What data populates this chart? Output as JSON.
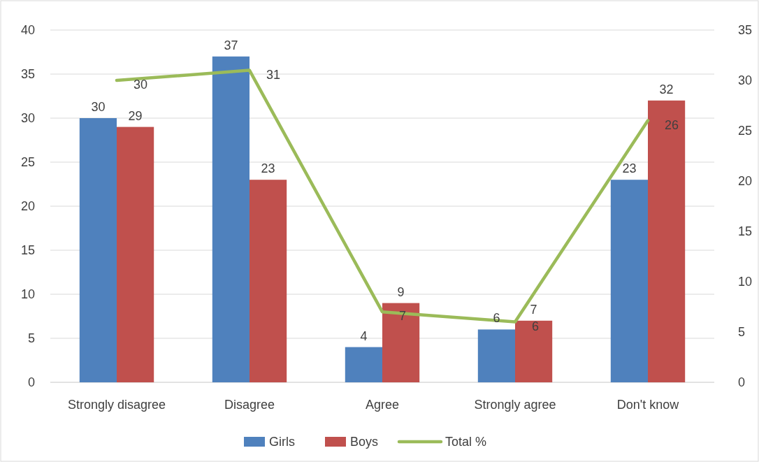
{
  "chart_data": {
    "type": "bar",
    "categories": [
      "Strongly disagree",
      "Disagree",
      "Agree",
      "Strongly agree",
      "Don't know"
    ],
    "series": [
      {
        "name": "Girls",
        "color": "#4f81bd",
        "values": [
          30,
          37,
          4,
          6,
          23
        ]
      },
      {
        "name": "Boys",
        "color": "#c0504d",
        "values": [
          29,
          23,
          9,
          7,
          32
        ]
      },
      {
        "name": "Total %",
        "type": "line",
        "axis": "y2",
        "color": "#9bbb59",
        "values": [
          30,
          31,
          7,
          6,
          26
        ]
      }
    ],
    "ylim": [
      0,
      40
    ],
    "yticks": [
      0,
      5,
      10,
      15,
      20,
      25,
      30,
      35,
      40
    ],
    "y2lim": [
      0,
      35
    ],
    "y2ticks": [
      0,
      5,
      10,
      15,
      20,
      25,
      30,
      35
    ],
    "grid": "y",
    "legend": "bottom",
    "data_labels": true,
    "marker": "none",
    "line_style": "solid"
  }
}
